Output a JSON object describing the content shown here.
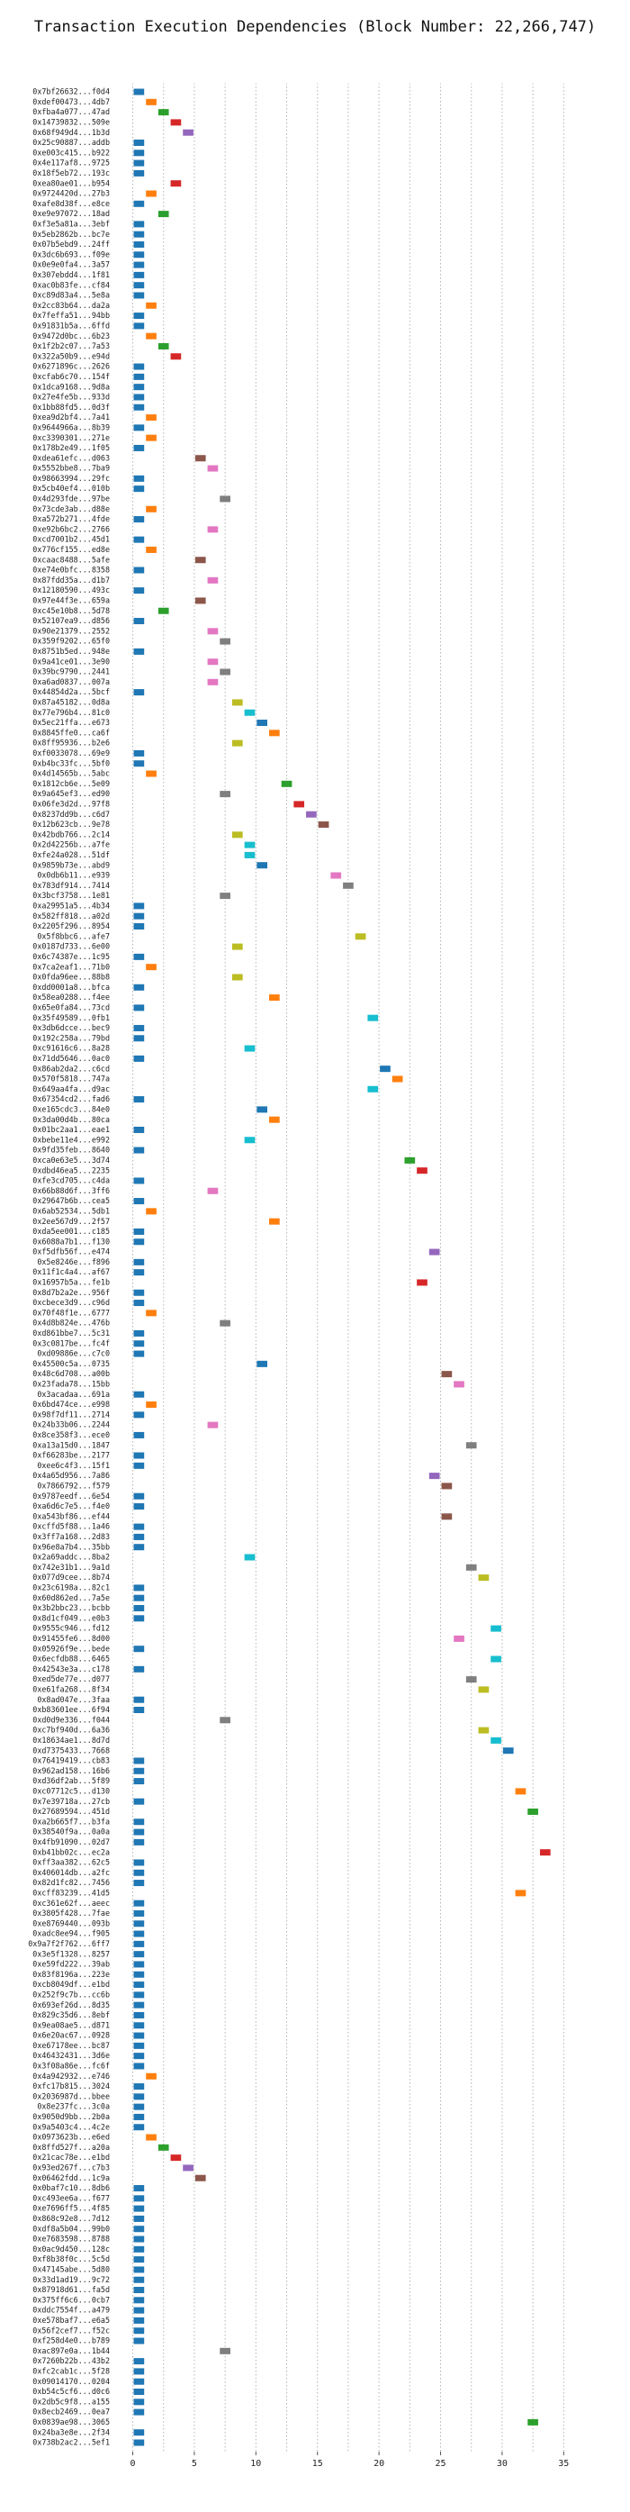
{
  "chart_data": {
    "type": "bar",
    "orientation": "horizontal",
    "title": "Transaction Execution Dependencies (Block Number: 22,266,747)",
    "xlabel": "",
    "ylabel": "",
    "xlim": [
      -1.5,
      36
    ],
    "xticks": [
      0,
      5,
      10,
      15,
      20,
      25,
      30,
      35
    ],
    "grid": true,
    "grid_style": "dotted vertical",
    "palette": [
      "#1f77b4",
      "#ff7f0e",
      "#2ca02c",
      "#d62728",
      "#9467bd",
      "#8c564b",
      "#e377c2",
      "#7f7f7f",
      "#bcbd22",
      "#17becf"
    ],
    "rows": [
      {
        "label": "0x7bf26632...f0d4",
        "start": 0
      },
      {
        "label": "0xdef00473...4db7",
        "start": 1
      },
      {
        "label": "0xfba4a077...47ad",
        "start": 2
      },
      {
        "label": "0x14739832...509e",
        "start": 3
      },
      {
        "label": "0x68f949d4...1b3d",
        "start": 4
      },
      {
        "label": "0x25c90887...addb",
        "start": 0
      },
      {
        "label": "0xe003c415...b922",
        "start": 0
      },
      {
        "label": "0x4e117af8...9725",
        "start": 0
      },
      {
        "label": "0x18f5eb72...193c",
        "start": 0
      },
      {
        "label": "0xea80ae01...b954",
        "start": 3
      },
      {
        "label": "0x9724420d...27b3",
        "start": 1
      },
      {
        "label": "0xafe8d38f...e8ce",
        "start": 0
      },
      {
        "label": "0xe9e97072...18ad",
        "start": 2
      },
      {
        "label": "0xf3e5a81a...3ebf",
        "start": 0
      },
      {
        "label": "0x5eb2862b...bc7e",
        "start": 0
      },
      {
        "label": "0x07b5ebd9...24ff",
        "start": 0
      },
      {
        "label": "0x3dc6b693...f09e",
        "start": 0
      },
      {
        "label": "0x0e9e0fa4...3a57",
        "start": 0
      },
      {
        "label": "0x307ebdd4...1f81",
        "start": 0
      },
      {
        "label": "0xac0b83fe...cf84",
        "start": 0
      },
      {
        "label": "0xc89d83a4...5e8a",
        "start": 0
      },
      {
        "label": "0x2cc83b64...da2a",
        "start": 1
      },
      {
        "label": "0x7feffa51...94bb",
        "start": 0
      },
      {
        "label": "0x91831b5a...6ffd",
        "start": 0
      },
      {
        "label": "0x9472d0bc...6b23",
        "start": 1
      },
      {
        "label": "0x1f2b2c07...7a53",
        "start": 2
      },
      {
        "label": "0x322a50b9...e94d",
        "start": 3
      },
      {
        "label": "0x6271896c...2626",
        "start": 0
      },
      {
        "label": "0xcfab6c70...154f",
        "start": 0
      },
      {
        "label": "0x1dca9168...9d8a",
        "start": 0
      },
      {
        "label": "0x27e4fe5b...933d",
        "start": 0
      },
      {
        "label": "0x1bb88fd5...0d3f",
        "start": 0
      },
      {
        "label": "0xea9d2bf4...7a41",
        "start": 1
      },
      {
        "label": "0x9644966a...8b39",
        "start": 0
      },
      {
        "label": "0xc3390301...271e",
        "start": 1
      },
      {
        "label": "0x178b2e49...1f05",
        "start": 0
      },
      {
        "label": "0xdea61efc...d063",
        "start": 5
      },
      {
        "label": "0x5552bbe8...7ba9",
        "start": 6
      },
      {
        "label": "0x98663994...29fc",
        "start": 0
      },
      {
        "label": "0x5cb40ef4...010b",
        "start": 0
      },
      {
        "label": "0x4d293fde...97be",
        "start": 7
      },
      {
        "label": "0x73cde3ab...d88e",
        "start": 1
      },
      {
        "label": "0xa572b271...4fde",
        "start": 0
      },
      {
        "label": "0xe92b6bc2...2766",
        "start": 6
      },
      {
        "label": "0xcd7001b2...45d1",
        "start": 0
      },
      {
        "label": "0x776cf155...ed8e",
        "start": 1
      },
      {
        "label": "0xcaac8488...5afe",
        "start": 5
      },
      {
        "label": "0xe74e0bfc...8358",
        "start": 0
      },
      {
        "label": "0x87fdd35a...d1b7",
        "start": 6
      },
      {
        "label": "0x12180590...493c",
        "start": 0
      },
      {
        "label": "0x97e44f3e...659a",
        "start": 5
      },
      {
        "label": "0xc45e10b8...5d78",
        "start": 2
      },
      {
        "label": "0x52107ea9...d856",
        "start": 0
      },
      {
        "label": "0x90e21379...2552",
        "start": 6
      },
      {
        "label": "0x359f9202...65f0",
        "start": 7
      },
      {
        "label": "0x8751b5ed...948e",
        "start": 0
      },
      {
        "label": "0x9a41ce01...3e90",
        "start": 6
      },
      {
        "label": "0x39bc9790...2441",
        "start": 7
      },
      {
        "label": "0xa6ad0837...007a",
        "start": 6
      },
      {
        "label": "0x44854d2a...5bcf",
        "start": 0
      },
      {
        "label": "0x87a45182...0d8a",
        "start": 8
      },
      {
        "label": "0x77e796b4...81c0",
        "start": 9
      },
      {
        "label": "0x5ec21ffa...e673",
        "start": 10
      },
      {
        "label": "0x8845ffe0...ca6f",
        "start": 11
      },
      {
        "label": "0x8ff95936...b2e6",
        "start": 8
      },
      {
        "label": "0xf0033078...69e9",
        "start": 0
      },
      {
        "label": "0xb4bc33fc...5bf0",
        "start": 0
      },
      {
        "label": "0x4d14565b...5abc",
        "start": 1
      },
      {
        "label": "0x1812cb6e...5e09",
        "start": 12
      },
      {
        "label": "0x9a645ef3...ed90",
        "start": 7
      },
      {
        "label": "0x06fe3d2d...97f8",
        "start": 13
      },
      {
        "label": "0x8237dd9b...c6d7",
        "start": 14
      },
      {
        "label": "0x12b623cb...9e78",
        "start": 15
      },
      {
        "label": "0x42bdb766...2c14",
        "start": 8
      },
      {
        "label": "0x2d42256b...a7fe",
        "start": 9
      },
      {
        "label": "0xfe24a028...51df",
        "start": 9
      },
      {
        "label": "0x9859b73e...abd9",
        "start": 10
      },
      {
        "label": "0x0db6b11...e939",
        "start": 16
      },
      {
        "label": "0x783df914...7414",
        "start": 17
      },
      {
        "label": "0x3bcf3758...1e81",
        "start": 7
      },
      {
        "label": "0xa29951a5...4b34",
        "start": 0
      },
      {
        "label": "0x582ff818...a02d",
        "start": 0
      },
      {
        "label": "0x2205f296...8954",
        "start": 0
      },
      {
        "label": "0x5f8bbc6...afe7",
        "start": 18
      },
      {
        "label": "0x0187d733...6e00",
        "start": 8
      },
      {
        "label": "0x6c74387e...1c95",
        "start": 0
      },
      {
        "label": "0x7ca2eaf1...71b0",
        "start": 1
      },
      {
        "label": "0x0fda96ee...88b8",
        "start": 8
      },
      {
        "label": "0xdd0001a8...bfca",
        "start": 0
      },
      {
        "label": "0x58ea0288...f4ee",
        "start": 11
      },
      {
        "label": "0x65e0fa84...73cd",
        "start": 0
      },
      {
        "label": "0x35f49589...0fb1",
        "start": 19
      },
      {
        "label": "0x3db6dcce...bec9",
        "start": 0
      },
      {
        "label": "0x192c258a...79bd",
        "start": 0
      },
      {
        "label": "0xc91616c6...8a28",
        "start": 9
      },
      {
        "label": "0x71dd5646...0ac0",
        "start": 0
      },
      {
        "label": "0x86ab2da2...c6cd",
        "start": 20
      },
      {
        "label": "0x570f5818...747a",
        "start": 21
      },
      {
        "label": "0x649aa4fa...d9ac",
        "start": 19
      },
      {
        "label": "0x67354cd2...fad6",
        "start": 0
      },
      {
        "label": "0xe165cdc3...84e0",
        "start": 10
      },
      {
        "label": "0x3da00d4b...80ca",
        "start": 11
      },
      {
        "label": "0x01bc2aa1...eae1",
        "start": 0
      },
      {
        "label": "0xbebe11e4...e992",
        "start": 9
      },
      {
        "label": "0x9fd35feb...8640",
        "start": 0
      },
      {
        "label": "0xca0e63e5...3d74",
        "start": 22
      },
      {
        "label": "0xdbd46ea5...2235",
        "start": 23
      },
      {
        "label": "0xfe3cd705...c4da",
        "start": 0
      },
      {
        "label": "0x66b88d6f...3ff6",
        "start": 6
      },
      {
        "label": "0x29647b6b...cea5",
        "start": 0
      },
      {
        "label": "0x6ab52534...5db1",
        "start": 1
      },
      {
        "label": "0x2ee567d9...2f57",
        "start": 11
      },
      {
        "label": "0xda5ee001...c185",
        "start": 0
      },
      {
        "label": "0x6088a7b1...f130",
        "start": 0
      },
      {
        "label": "0xf5dfb56f...e474",
        "start": 24
      },
      {
        "label": "0x5e8246e...f896",
        "start": 0
      },
      {
        "label": "0x11f1c4a4...af67",
        "start": 0
      },
      {
        "label": "0x16957b5a...fe1b",
        "start": 23
      },
      {
        "label": "0x8d7b2a2e...956f",
        "start": 0
      },
      {
        "label": "0xcbece3d9...c96d",
        "start": 0
      },
      {
        "label": "0x70f48f1e...6777",
        "start": 1
      },
      {
        "label": "0x4d8b824e...476b",
        "start": 7
      },
      {
        "label": "0xd861bbe7...5c31",
        "start": 0
      },
      {
        "label": "0x3c0817be...fc4f",
        "start": 0
      },
      {
        "label": "0xd09886e...c7c0",
        "start": 0
      },
      {
        "label": "0x45500c5a...0735",
        "start": 10
      },
      {
        "label": "0x48c6d708...a00b",
        "start": 25
      },
      {
        "label": "0x23fada78...15bb",
        "start": 26
      },
      {
        "label": "0x3acadaa...691a",
        "start": 0
      },
      {
        "label": "0x6bd474ce...e998",
        "start": 1
      },
      {
        "label": "0x98f7df11...2714",
        "start": 0
      },
      {
        "label": "0x24b33b06...2244",
        "start": 6
      },
      {
        "label": "0x8ce358f3...ece0",
        "start": 0
      },
      {
        "label": "0xa13a15d0...1847",
        "start": 27
      },
      {
        "label": "0xf66283be...2177",
        "start": 0
      },
      {
        "label": "0xee6c4f3...15f1",
        "start": 0
      },
      {
        "label": "0x4a65d956...7a86",
        "start": 24
      },
      {
        "label": "0x7866792...f579",
        "start": 25
      },
      {
        "label": "0x9787eedf...6e54",
        "start": 0
      },
      {
        "label": "0xa6d6c7e5...f4e0",
        "start": 0
      },
      {
        "label": "0xa543bf86...ef44",
        "start": 25
      },
      {
        "label": "0xcffd5f88...1a46",
        "start": 0
      },
      {
        "label": "0x3ff7a168...2d83",
        "start": 0
      },
      {
        "label": "0x96e8a7b4...35bb",
        "start": 0
      },
      {
        "label": "0x2a69addc...8ba2",
        "start": 9
      },
      {
        "label": "0x742e31b1...9a1d",
        "start": 27
      },
      {
        "label": "0x077d9cee...8b74",
        "start": 28
      },
      {
        "label": "0x23c6198a...82c1",
        "start": 0
      },
      {
        "label": "0x60d862ed...7a5e",
        "start": 0
      },
      {
        "label": "0x3b2bbc23...bcbb",
        "start": 0
      },
      {
        "label": "0x8d1cf049...e0b3",
        "start": 0
      },
      {
        "label": "0x9555c946...fd12",
        "start": 29
      },
      {
        "label": "0x91455fe6...8d00",
        "start": 26
      },
      {
        "label": "0x05926f9e...bede",
        "start": 0
      },
      {
        "label": "0x6ecfdb88...6465",
        "start": 29
      },
      {
        "label": "0x42543e3a...c178",
        "start": 0
      },
      {
        "label": "0xed5de77e...d077",
        "start": 27
      },
      {
        "label": "0xe61fa268...8f34",
        "start": 28
      },
      {
        "label": "0x8ad047e...3faa",
        "start": 0
      },
      {
        "label": "0xb83601ee...6f94",
        "start": 0
      },
      {
        "label": "0xd0d9e336...f044",
        "start": 7
      },
      {
        "label": "0xc7bf940d...6a36",
        "start": 28
      },
      {
        "label": "0x18634ae1...8d7d",
        "start": 29
      },
      {
        "label": "0xd7375433...7668",
        "start": 30
      },
      {
        "label": "0x76419419...cb83",
        "start": 0
      },
      {
        "label": "0x962ad158...16b6",
        "start": 0
      },
      {
        "label": "0xd36df2ab...5f89",
        "start": 0
      },
      {
        "label": "0xc07712c5...d130",
        "start": 31
      },
      {
        "label": "0x7e39718a...27cb",
        "start": 0
      },
      {
        "label": "0x27689594...451d",
        "start": 32
      },
      {
        "label": "0xa2b665f7...b3fa",
        "start": 0
      },
      {
        "label": "0x38540f9a...0a0a",
        "start": 0
      },
      {
        "label": "0x4fb91090...02d7",
        "start": 0
      },
      {
        "label": "0xb41bb02c...ec2a",
        "start": 33
      },
      {
        "label": "0xff3aa382...62c5",
        "start": 0
      },
      {
        "label": "0x406014db...a2fc",
        "start": 0
      },
      {
        "label": "0x82d1fc82...7456",
        "start": 0
      },
      {
        "label": "0xcff83239...41d5",
        "start": 31
      },
      {
        "label": "0xc361e62f...aeec",
        "start": 0
      },
      {
        "label": "0x3805f428...7fae",
        "start": 0
      },
      {
        "label": "0xe8769440...093b",
        "start": 0
      },
      {
        "label": "0xadc8ee94...f905",
        "start": 0
      },
      {
        "label": "0x9a7f2f762...6ff7",
        "start": 0
      },
      {
        "label": "0x3e5f1328...8257",
        "start": 0
      },
      {
        "label": "0xe59fd222...39ab",
        "start": 0
      },
      {
        "label": "0x83f8196a...223e",
        "start": 0
      },
      {
        "label": "0xcb8049df...e1bd",
        "start": 0
      },
      {
        "label": "0x252f9c7b...cc6b",
        "start": 0
      },
      {
        "label": "0x693ef26d...8d35",
        "start": 0
      },
      {
        "label": "0x829c35d6...8ebf",
        "start": 0
      },
      {
        "label": "0x9ea08ae5...d871",
        "start": 0
      },
      {
        "label": "0x6e20ac67...0928",
        "start": 0
      },
      {
        "label": "0xe67178ee...bc87",
        "start": 0
      },
      {
        "label": "0x46432431...3d6e",
        "start": 0
      },
      {
        "label": "0x3f08a86e...fc6f",
        "start": 0
      },
      {
        "label": "0x4a942932...e746",
        "start": 1
      },
      {
        "label": "0xfc17b815...3024",
        "start": 0
      },
      {
        "label": "0x2036987d...bbee",
        "start": 0
      },
      {
        "label": "0x8e237fc...3c0a",
        "start": 0
      },
      {
        "label": "0x9050d9bb...2b0a",
        "start": 0
      },
      {
        "label": "0x9a5403c4...4c2e",
        "start": 0
      },
      {
        "label": "0x0973623b...e6ed",
        "start": 1
      },
      {
        "label": "0x8ffd527f...a20a",
        "start": 2
      },
      {
        "label": "0x21cac78e...e1bd",
        "start": 3
      },
      {
        "label": "0x93ed267f...c7b3",
        "start": 4
      },
      {
        "label": "0x06462fdd...1c9a",
        "start": 5
      },
      {
        "label": "0x0baf7c10...8db6",
        "start": 0
      },
      {
        "label": "0xc493ee6a...f677",
        "start": 0
      },
      {
        "label": "0xe7696ff5...4f85",
        "start": 0
      },
      {
        "label": "0x868c92e8...7d12",
        "start": 0
      },
      {
        "label": "0xdf8a5b04...99b0",
        "start": 0
      },
      {
        "label": "0xe7683598...8788",
        "start": 0
      },
      {
        "label": "0x0ac9d450...128c",
        "start": 0
      },
      {
        "label": "0xf8b38f0c...5c5d",
        "start": 0
      },
      {
        "label": "0x47145abe...5d80",
        "start": 0
      },
      {
        "label": "0x33d1ad19...9c72",
        "start": 0
      },
      {
        "label": "0x87918d61...fa5d",
        "start": 0
      },
      {
        "label": "0x375ff6c6...0cb7",
        "start": 0
      },
      {
        "label": "0xddc7554f...a479",
        "start": 0
      },
      {
        "label": "0xe578baf7...e6a5",
        "start": 0
      },
      {
        "label": "0x56f2cef7...f52c",
        "start": 0
      },
      {
        "label": "0xf258d4e0...b789",
        "start": 0
      },
      {
        "label": "0xac897e0a...1b44",
        "start": 7
      },
      {
        "label": "0x7260b22b...43b2",
        "start": 0
      },
      {
        "label": "0xfc2cab1c...5f28",
        "start": 0
      },
      {
        "label": "0x09014170...0204",
        "start": 0
      },
      {
        "label": "0xb54c5cf6...d0c6",
        "start": 0
      },
      {
        "label": "0x2db5c9f8...a155",
        "start": 0
      },
      {
        "label": "0x8ecb2469...0ea7",
        "start": 0
      },
      {
        "label": "0x0839ae98...3065",
        "start": 32
      },
      {
        "label": "0x24ba3e8e...2f34",
        "start": 0
      },
      {
        "label": "0x738b2ac2...5ef1",
        "start": 0
      }
    ]
  }
}
